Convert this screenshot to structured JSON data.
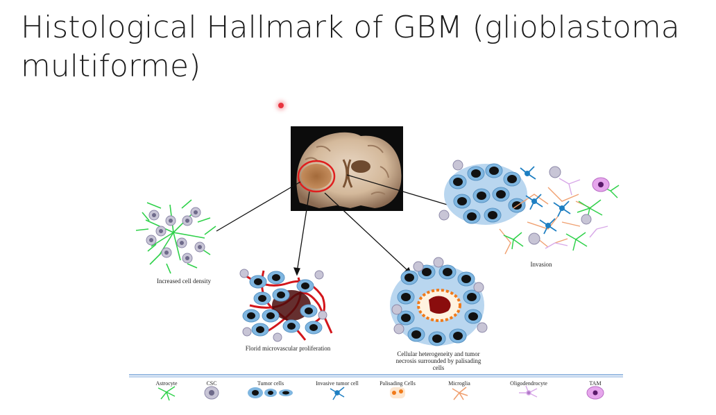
{
  "slide": {
    "title": "Histological Hallmark of GBM (glioblastoma multiforme)"
  },
  "diagram": {
    "panels": [
      {
        "id": "density",
        "caption": "Increased cell density"
      },
      {
        "id": "micro",
        "caption": "Florid microvascular proliferation"
      },
      {
        "id": "necrosis",
        "caption": "Cellular heterogeneity and tumor necrosis surrounded by palisading cells"
      },
      {
        "id": "invasion",
        "caption": "Invasion"
      }
    ],
    "legend": [
      {
        "label": "Astrocyte",
        "icon": "astrocyte-icon"
      },
      {
        "label": "CSC",
        "icon": "csc-icon"
      },
      {
        "label": "Tumor cells",
        "icon": "tumor-cells-icon"
      },
      {
        "label": "Invasive tumor cell",
        "icon": "invasive-tumor-cell-icon"
      },
      {
        "label": "Palisading Cells",
        "icon": "palisading-cells-icon"
      },
      {
        "label": "Microglia",
        "icon": "microglia-icon"
      },
      {
        "label": "Oligodendrocyte",
        "icon": "oligodendrocyte-icon"
      },
      {
        "label": "TAM",
        "icon": "tam-icon"
      }
    ],
    "colors": {
      "astrocyte": "#2fd14a",
      "csc": "#b7b4c9",
      "tumor_cell_body": "#7fb6e0",
      "tumor_cell_nucleus": "#111111",
      "invasive": "#1e7fc2",
      "palisading": "#f07a1a",
      "microglia": "#f0a070",
      "oligodendrocyte": "#d8a8e8",
      "tam": "#e6a6ec",
      "vessel": "#d3161b",
      "necrosis": "#8a0d0d",
      "highlight_ring": "#e01e1e",
      "legend_line": "#7aa6d8"
    }
  }
}
